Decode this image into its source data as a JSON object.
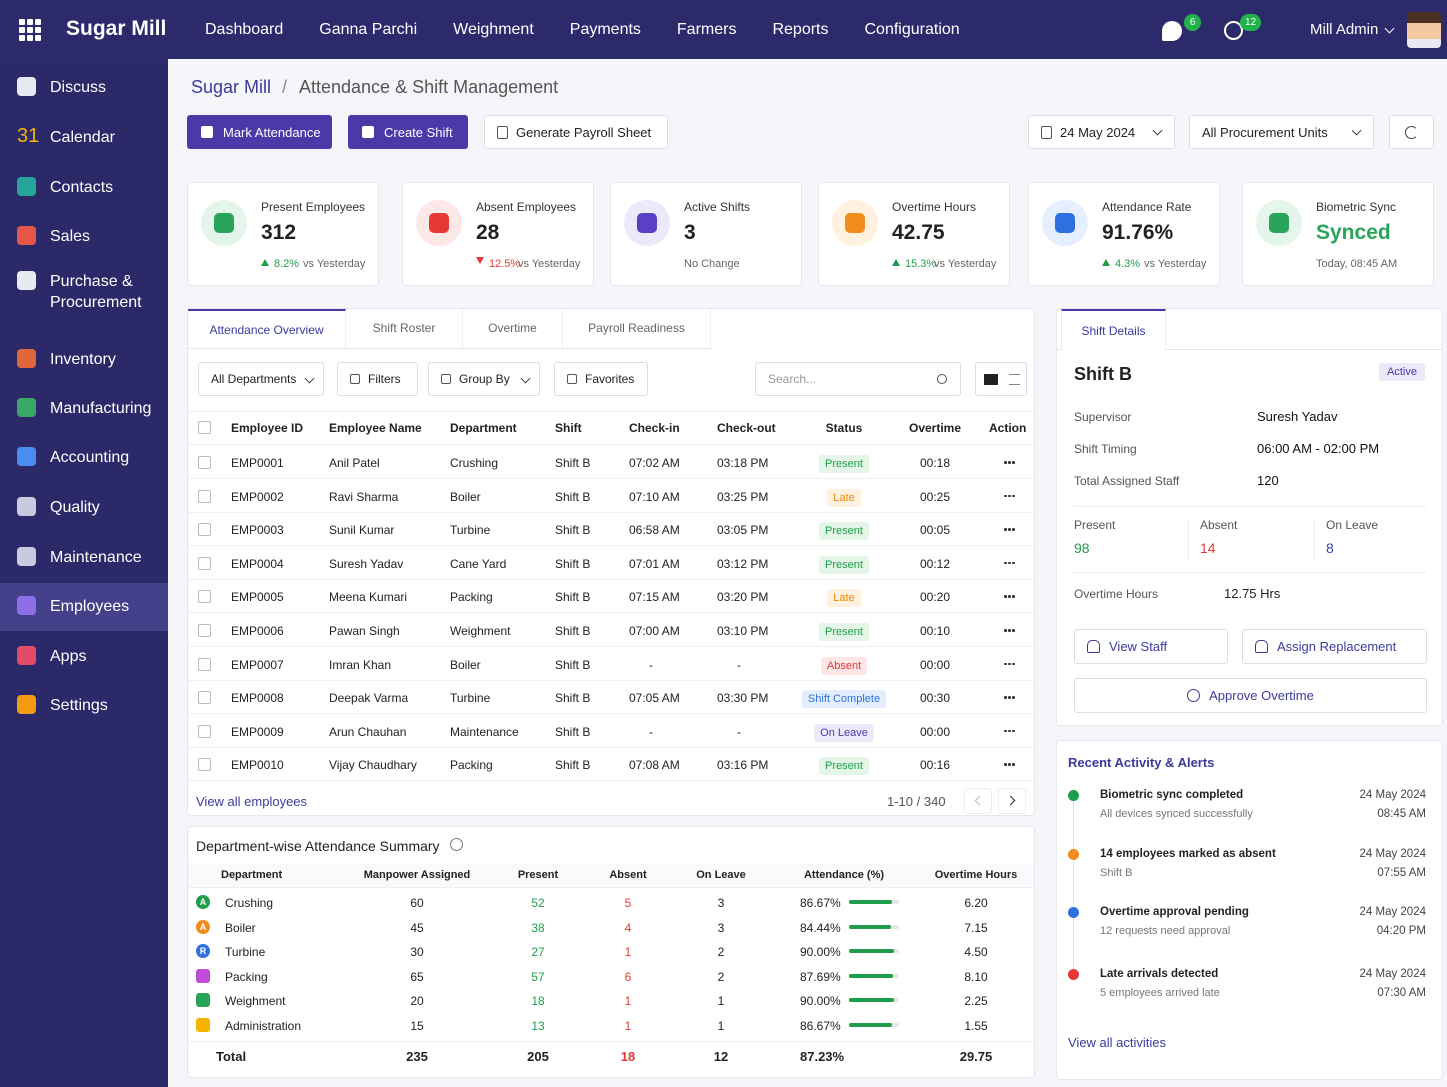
{
  "topbar": {
    "brand": "Sugar Mill",
    "nav": [
      "Dashboard",
      "Ganna Parchi",
      "Weighment",
      "Payments",
      "Farmers",
      "Reports",
      "Configuration"
    ],
    "chat_badge": 6,
    "clock_badge": 12,
    "user": "Mill Admin"
  },
  "sidebar": {
    "calendar_icon": 31,
    "active": 10,
    "items": [
      {
        "label": "Discuss",
        "color": "#e9e9f5"
      },
      {
        "label": "Calendar",
        "color": "#f5b400"
      },
      {
        "label": "Contacts",
        "color": "#26a69a"
      },
      {
        "label": "Sales",
        "color": "#e4574a"
      },
      {
        "label": "Purchase & Procurement",
        "color": "#e9e9f5"
      },
      {
        "label": "Inventory",
        "color": "#e0663c"
      },
      {
        "label": "Manufacturing",
        "color": "#3aa66a"
      },
      {
        "label": "Accounting",
        "color": "#4c8bf0"
      },
      {
        "label": "Quality",
        "color": "#c9c9e0"
      },
      {
        "label": "Maintenance",
        "color": "#c9c9e0"
      },
      {
        "label": "Employees",
        "color": "#8f6fe8"
      },
      {
        "label": "Apps",
        "color": "#e34b6b"
      },
      {
        "label": "Settings",
        "color": "#f39c12"
      }
    ]
  },
  "breadcrumb": {
    "root": "Sugar Mill",
    "separator": "/",
    "title": "Attendance & Shift Management"
  },
  "actions": {
    "primary": [
      "Mark Attendance",
      "Create Shift"
    ],
    "secondary": "Generate Payroll Sheet",
    "date": "24 May 2024",
    "unit": "All Procurement Units"
  },
  "kpis": [
    {
      "label": "Present Employees",
      "value": 312,
      "change": "8.2%",
      "note": "vs Yesterday",
      "trend": "up",
      "color": "#2aa45a",
      "bg": "#e4f5ea"
    },
    {
      "label": "Absent Employees",
      "value": 28,
      "change": "12.5%",
      "note": "vs Yesterday",
      "trend": "down",
      "color": "#e53935",
      "bg": "#fde8e8"
    },
    {
      "label": "Active Shifts",
      "value": 3,
      "note": "No Change",
      "color": "#5b3fc4",
      "bg": "#ece9fb"
    },
    {
      "label": "Overtime Hours",
      "value": 42.75,
      "change": "15.3%",
      "note": "vs Yesterday",
      "trend": "up",
      "color": "#f28c1c",
      "bg": "#fff0e0"
    },
    {
      "label": "Attendance Rate",
      "value": "91.76%",
      "change": "4.3%",
      "note": "vs Yesterday",
      "trend": "up",
      "color": "#2f6fe0",
      "bg": "#e5efff"
    },
    {
      "label": "Biometric Sync",
      "value": "Synced",
      "note": "Today, 08:45 AM",
      "color": "#2aa45a",
      "bg": "#e4f5ea",
      "highlight": true
    }
  ],
  "tabs": {
    "items": [
      "Attendance Overview",
      "Shift Roster",
      "Overtime",
      "Payroll Readiness"
    ],
    "active": 0
  },
  "toolbar": {
    "filters": [
      "All Departments",
      "Filters",
      "Group By",
      "Favorites"
    ],
    "search": "Search..."
  },
  "status_tones": {
    "Present": [
      "#e3f6e8",
      "#1e9e4a"
    ],
    "Late": [
      "#fff1e0",
      "#e8890c"
    ],
    "Absent": [
      "#fde6e6",
      "#e53935"
    ],
    "Shift Complete": [
      "#e3efff",
      "#2f6fe0"
    ],
    "On Leave": [
      "#ece9fb",
      "#4a3aa8"
    ]
  },
  "table": {
    "columns": [
      "Employee ID",
      "Employee Name",
      "Department",
      "Shift",
      "Check-in",
      "Check-out",
      "Status",
      "Overtime",
      "Action"
    ],
    "rows": [
      [
        "EMP0001",
        "Anil Patel",
        "Crushing",
        "Shift B",
        "07:02 AM",
        "03:18 PM",
        "Present",
        "00:18"
      ],
      [
        "EMP0002",
        "Ravi Sharma",
        "Boiler",
        "Shift B",
        "07:10 AM",
        "03:25 PM",
        "Late",
        "00:25"
      ],
      [
        "EMP0003",
        "Sunil Kumar",
        "Turbine",
        "Shift B",
        "06:58 AM",
        "03:05 PM",
        "Present",
        "00:05"
      ],
      [
        "EMP0004",
        "Suresh Yadav",
        "Cane Yard",
        "Shift B",
        "07:01 AM",
        "03:12 PM",
        "Present",
        "00:12"
      ],
      [
        "EMP0005",
        "Meena Kumari",
        "Packing",
        "Shift B",
        "07:15 AM",
        "03:20 PM",
        "Late",
        "00:20"
      ],
      [
        "EMP0006",
        "Pawan Singh",
        "Weighment",
        "Shift B",
        "07:00 AM",
        "03:10 PM",
        "Present",
        "00:10"
      ],
      [
        "EMP0007",
        "Imran Khan",
        "Boiler",
        "Shift B",
        "-",
        "-",
        "Absent",
        "00:00"
      ],
      [
        "EMP0008",
        "Deepak Varma",
        "Turbine",
        "Shift B",
        "07:05 AM",
        "03:30 PM",
        "Shift Complete",
        "00:30"
      ],
      [
        "EMP0009",
        "Arun Chauhan",
        "Maintenance",
        "Shift B",
        "-",
        "-",
        "On Leave",
        "00:00"
      ],
      [
        "EMP0010",
        "Vijay Chaudhary",
        "Packing",
        "Shift B",
        "07:08 AM",
        "03:16 PM",
        "Present",
        "00:16"
      ]
    ],
    "view_all": "View all employees",
    "pagination": "1-10 / 340"
  },
  "summary": {
    "title": "Department-wise Attendance Summary",
    "columns": [
      "Department",
      "Manpower Assigned",
      "Present",
      "Absent",
      "On Leave",
      "Attendance (%)",
      "Overtime Hours"
    ],
    "rows": [
      {
        "icon": "A",
        "color": "#1e9e4a",
        "name": "Crushing",
        "values": [
          60,
          52,
          5,
          3
        ],
        "attendance": "86.67%",
        "overtime": "6.20"
      },
      {
        "icon": "A",
        "color": "#f28c1c",
        "name": "Boiler",
        "values": [
          45,
          38,
          4,
          3
        ],
        "attendance": "84.44%",
        "overtime": "7.15"
      },
      {
        "icon": "R",
        "color": "#2f6fe0",
        "name": "Turbine",
        "values": [
          30,
          27,
          1,
          2
        ],
        "attendance": "90.00%",
        "overtime": "4.50"
      },
      {
        "color": "#c04fd8",
        "name": "Packing",
        "values": [
          65,
          57,
          6,
          2
        ],
        "attendance": "87.69%",
        "overtime": "8.10"
      },
      {
        "color": "#2aa45a",
        "name": "Weighment",
        "values": [
          20,
          18,
          1,
          1
        ],
        "attendance": "90.00%",
        "overtime": "2.25"
      },
      {
        "color": "#f5b400",
        "name": "Administration",
        "values": [
          15,
          13,
          1,
          1
        ],
        "attendance": "86.67%",
        "overtime": "1.55"
      }
    ],
    "total": {
      "label": "Total",
      "values": [
        235,
        205,
        18,
        12
      ],
      "attendance": "87.23%",
      "overtime": "29.75"
    }
  },
  "shift": {
    "tab": "Shift Details",
    "title": "Shift B",
    "status": "Active",
    "fields": [
      {
        "label": "Supervisor",
        "value": "Suresh Yadav"
      },
      {
        "label": "Shift Timing",
        "value": "06:00 AM - 02:00 PM"
      },
      {
        "label": "Total Assigned Staff",
        "value": 120
      }
    ],
    "counts": [
      {
        "label": "Present",
        "value": 98,
        "color": "#1e9e4a"
      },
      {
        "label": "Absent",
        "value": 14,
        "color": "#e53935"
      },
      {
        "label": "On Leave",
        "value": 8,
        "color": "#3b3bb0"
      }
    ],
    "overtime": {
      "label": "Overtime Hours",
      "value": "12.75 Hrs"
    },
    "buttons": [
      "View Staff",
      "Assign Replacement",
      "Approve Overtime"
    ]
  },
  "activity": {
    "title": "Recent Activity & Alerts",
    "items": [
      {
        "title": "Biometric sync completed",
        "sub": "All devices synced successfully",
        "date": "24 May 2024",
        "time": "08:45 AM",
        "color": "#1e9e4a"
      },
      {
        "title": "14 employees marked as absent",
        "sub": "Shift B",
        "date": "24 May 2024",
        "time": "07:55 AM",
        "color": "#f28c1c"
      },
      {
        "title": "Overtime approval pending",
        "sub": "12 requests need approval",
        "date": "24 May 2024",
        "time": "04:20 PM",
        "color": "#2f6fe0"
      },
      {
        "title": "Late arrivals detected",
        "sub": "5 employees arrived late",
        "date": "24 May 2024",
        "time": "07:30 AM",
        "color": "#e53935"
      }
    ],
    "view_all": "View all activities"
  }
}
